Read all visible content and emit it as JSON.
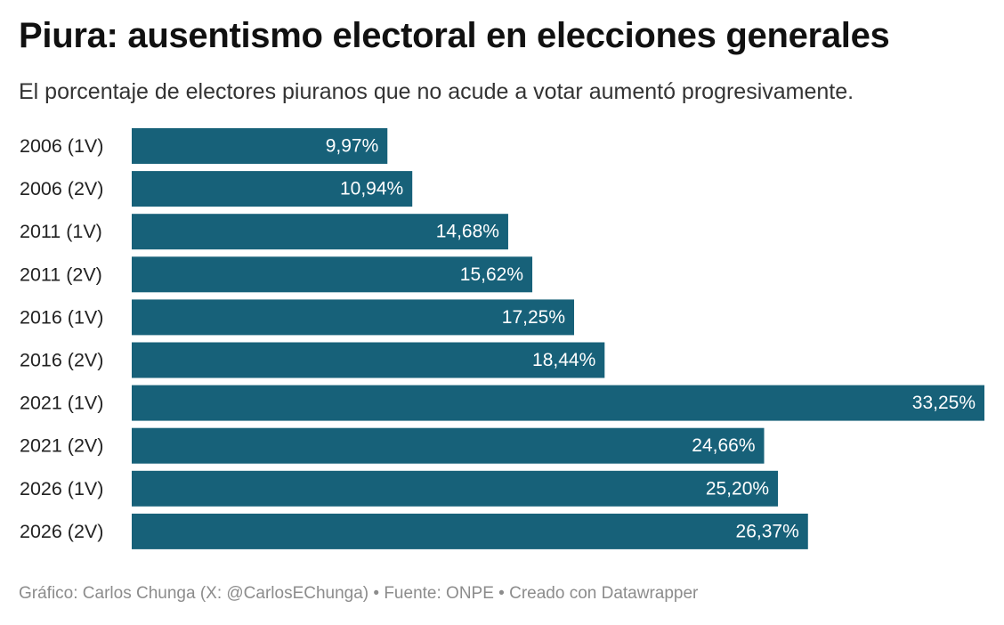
{
  "title": "Piura: ausentismo electoral en elecciones generales",
  "subtitle": "El porcentaje de electores piuranos que no acude a votar aumentó progresivamente.",
  "footer": "Gráfico: Carlos Chunga (X: @CarlosEChunga) • Fuente: ONPE • Creado con Datawrapper",
  "colors": {
    "bar": "#176179",
    "value_text": "#ffffff",
    "category_text": "#222222",
    "footer_text": "#8c8c8c"
  },
  "chart_data": {
    "type": "bar",
    "orientation": "horizontal",
    "categories": [
      "2006 (1V)",
      "2006 (2V)",
      "2011 (1V)",
      "2011 (2V)",
      "2016 (1V)",
      "2016 (2V)",
      "2021 (1V)",
      "2021 (2V)",
      "2026 (1V)",
      "2026 (2V)"
    ],
    "values": [
      9.97,
      10.94,
      14.68,
      15.62,
      17.25,
      18.44,
      33.25,
      24.66,
      25.2,
      26.37
    ],
    "value_labels": [
      "9,97%",
      "10,94%",
      "14,68%",
      "15,62%",
      "17,25%",
      "18,44%",
      "33,25%",
      "24,66%",
      "25,20%",
      "26,37%"
    ],
    "xlim": [
      0,
      33.25
    ],
    "grid": false,
    "legend": "none"
  }
}
